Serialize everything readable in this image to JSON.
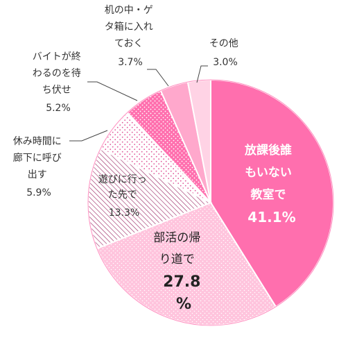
{
  "chart_data": {
    "type": "pie",
    "title": "",
    "start_angle_deg": 0,
    "direction": "clockwise",
    "slices": [
      {
        "key": "s1",
        "label_lines": [
          "放課後誰",
          "もいない",
          "教室で"
        ],
        "value_text": "41.1%",
        "value": 41.1,
        "color": "#ff6fae",
        "pattern": "solid"
      },
      {
        "key": "s2",
        "label_lines": [
          "部活の帰",
          "り道で"
        ],
        "value_text": "27.8",
        "value_text2": "%",
        "value": 27.8,
        "color": "#ffc4dd",
        "pattern": "dots-light"
      },
      {
        "key": "s3",
        "label_lines": [
          "遊びに行っ",
          "た先で"
        ],
        "value_text": "13.3%",
        "value": 13.3,
        "color": "#ffffff",
        "pattern": "hatch"
      },
      {
        "key": "s4",
        "label_lines": [
          "休み時間に",
          "廊下に呼び",
          "出す"
        ],
        "value_text": "5.9%",
        "value": 5.9,
        "color": "#ffffff",
        "pattern": "dots-pink"
      },
      {
        "key": "s5",
        "label_lines": [
          "バイトが終",
          "わるのを待",
          "ち伏せ"
        ],
        "value_text": "5.2%",
        "value": 5.2,
        "color": "#ff6fae",
        "pattern": "dots-white"
      },
      {
        "key": "s6",
        "label_lines": [
          "机の中・ゲ",
          "タ箱に入れ",
          "ておく"
        ],
        "value_text": "3.7%",
        "value": 3.7,
        "color": "#ffa8cc",
        "pattern": "solid"
      },
      {
        "key": "s7",
        "label_lines": [
          "その他"
        ],
        "value_text": "3.0%",
        "value": 3.0,
        "color": "#ffd3e5",
        "pattern": "solid"
      }
    ]
  }
}
